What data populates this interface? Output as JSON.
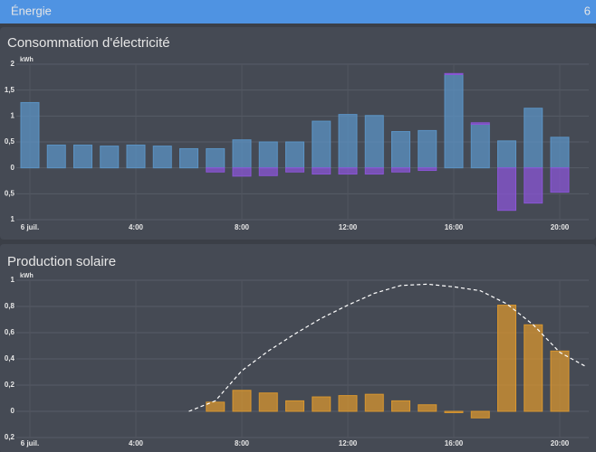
{
  "header": {
    "title": "Énergie",
    "badge": "6"
  },
  "chart_data": [
    {
      "type": "bar",
      "title": "Consommation d'électricité",
      "y_label": "kWh",
      "stacked": true,
      "categories": [
        "6 juil.",
        null,
        null,
        null,
        "4:00",
        null,
        null,
        null,
        "8:00",
        null,
        null,
        null,
        "12:00",
        null,
        null,
        null,
        "16:00",
        null,
        null,
        null,
        "20:00",
        null
      ],
      "series": [
        {
          "color": "#5b93c4",
          "values": [
            1.26,
            0.44,
            0.44,
            0.42,
            0.44,
            0.42,
            0.37,
            0.37,
            0.54,
            0.5,
            0.5,
            0.9,
            1.03,
            1.01,
            0.7,
            0.72,
            1.8,
            0.84,
            0.52,
            1.15,
            0.59,
            null
          ]
        },
        {
          "color": "#8a55d6",
          "values": [
            0,
            0,
            0,
            0,
            0,
            0,
            0,
            0,
            0,
            0,
            0,
            0,
            0,
            0,
            0,
            0,
            0.02,
            0.03,
            0,
            0,
            0,
            null
          ]
        },
        {
          "color": "#8a55d6",
          "values": [
            0,
            0,
            0,
            0,
            0,
            0,
            0,
            -0.08,
            -0.16,
            -0.15,
            -0.08,
            -0.12,
            -0.12,
            -0.12,
            -0.08,
            -0.05,
            0,
            0,
            -0.82,
            -0.68,
            -0.47,
            null
          ]
        }
      ],
      "ylim": [
        -1,
        2
      ],
      "yticks": [
        {
          "value": -1,
          "label": "1"
        },
        {
          "value": -0.5,
          "label": "0,5"
        },
        0,
        {
          "value": 0.5,
          "label": "0,5"
        },
        1,
        {
          "value": 1.5,
          "label": "1,5"
        },
        2
      ],
      "grid": true
    },
    {
      "type": "bar",
      "title": "Production solaire",
      "y_label": "kWh",
      "categories": [
        "6 juil.",
        null,
        null,
        null,
        "4:00",
        null,
        null,
        null,
        "8:00",
        null,
        null,
        null,
        "12:00",
        null,
        null,
        null,
        "16:00",
        null,
        null,
        null,
        "20:00",
        null
      ],
      "series": [
        {
          "color": "#d8962f",
          "values": [
            null,
            null,
            null,
            null,
            null,
            null,
            null,
            0.07,
            0.16,
            0.14,
            0.08,
            0.11,
            0.12,
            0.13,
            0.08,
            0.05,
            -0.01,
            -0.05,
            0.81,
            0.66,
            0.46,
            null
          ]
        },
        {
          "type": "line",
          "dashed": true,
          "color": "#ffffff",
          "values": [
            null,
            null,
            null,
            null,
            null,
            null,
            0,
            0.08,
            0.31,
            0.46,
            0.59,
            0.71,
            0.81,
            0.9,
            0.96,
            0.97,
            0.95,
            0.92,
            0.82,
            0.66,
            0.45,
            0.34
          ]
        }
      ],
      "ylim": [
        -0.2,
        1
      ],
      "yticks": [
        {
          "value": -0.2,
          "label": "0,2"
        },
        0,
        {
          "value": 0.2,
          "label": "0,2"
        },
        {
          "value": 0.4,
          "label": "0,4"
        },
        {
          "value": 0.6,
          "label": "0,6"
        },
        {
          "value": 0.8,
          "label": "0,8"
        },
        1
      ],
      "grid": true
    }
  ]
}
